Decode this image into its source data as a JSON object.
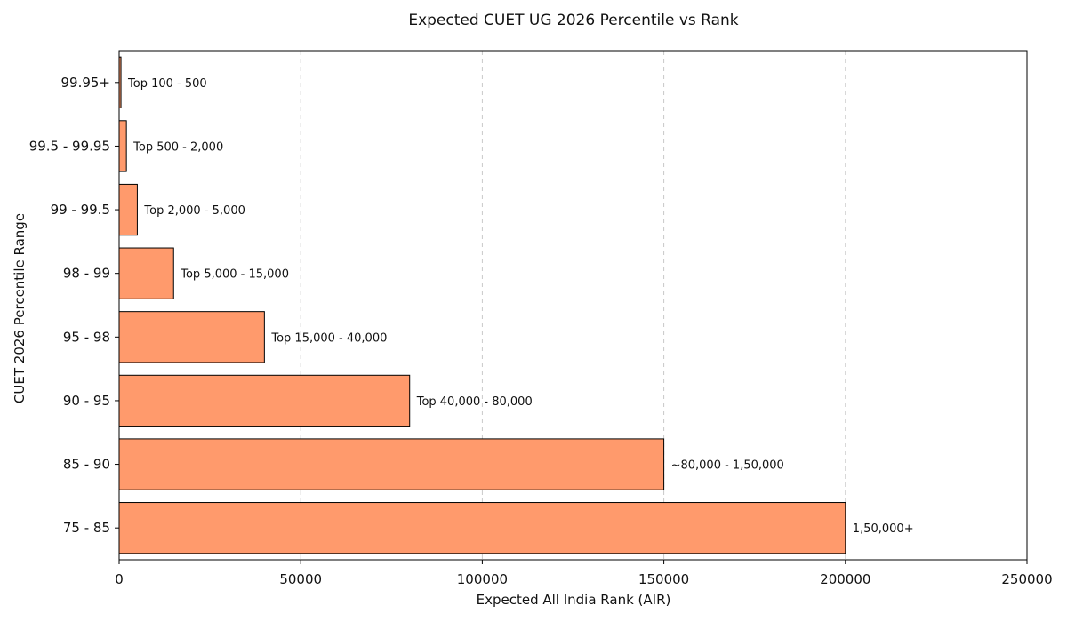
{
  "chart_data": {
    "type": "bar",
    "orientation": "horizontal",
    "title": "Expected CUET UG 2026 Percentile vs Rank",
    "xlabel": "Expected All India Rank (AIR)",
    "ylabel": "CUET 2026 Percentile Range",
    "xlim": [
      0,
      250000
    ],
    "xticks": [
      "0",
      "50000",
      "100000",
      "150000",
      "200000",
      "250000"
    ],
    "grid": "x-dashed",
    "bar_color": "#ff9a6c",
    "categories": [
      "99.95+",
      "99.5 - 99.95",
      "99 - 99.5",
      "98 - 99",
      "95 - 98",
      "90 - 95",
      "85 - 90",
      "75 - 85"
    ],
    "values": [
      500,
      2000,
      5000,
      15000,
      40000,
      80000,
      150000,
      200000
    ],
    "labels": [
      "Top 100 - 500",
      "Top 500 - 2,000",
      "Top 2,000 - 5,000",
      "Top 5,000 - 15,000",
      "Top 15,000 - 40,000",
      "Top 40,000 - 80,000",
      "~80,000 - 1,50,000",
      "1,50,000+"
    ]
  }
}
